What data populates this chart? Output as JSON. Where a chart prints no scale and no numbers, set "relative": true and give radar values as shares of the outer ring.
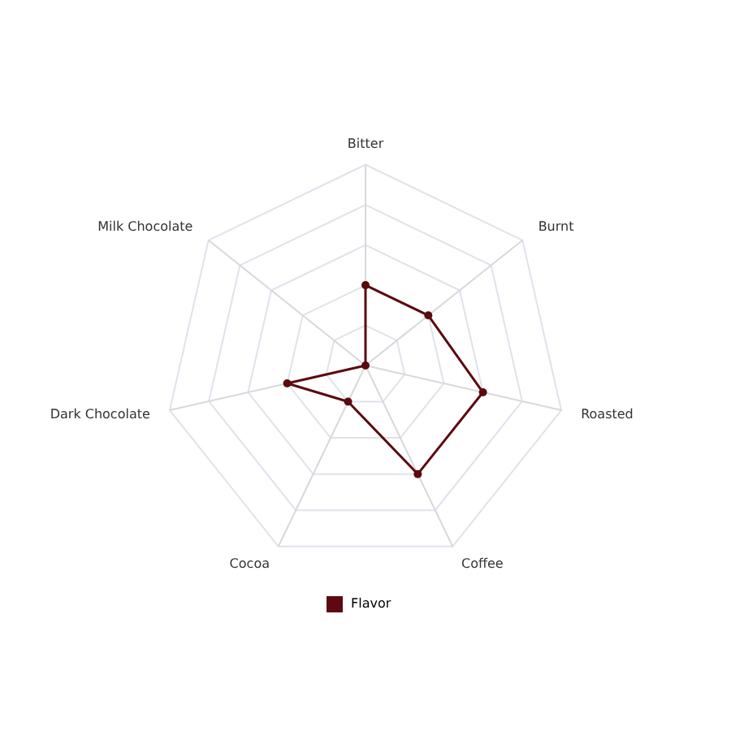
{
  "chart_data": {
    "type": "radar",
    "relative": true,
    "categories": [
      "Bitter",
      "Burnt",
      "Roasted",
      "Coffee",
      "Cocoa",
      "Dark Chocolate",
      "Milk Chocolate"
    ],
    "series": [
      {
        "name": "Flavor",
        "color": "#5c0a0f",
        "values": [
          0.4,
          0.4,
          0.6,
          0.6,
          0.2,
          0.4,
          0
        ]
      }
    ],
    "grid": true,
    "legend": "bottom",
    "marker": "circle"
  }
}
